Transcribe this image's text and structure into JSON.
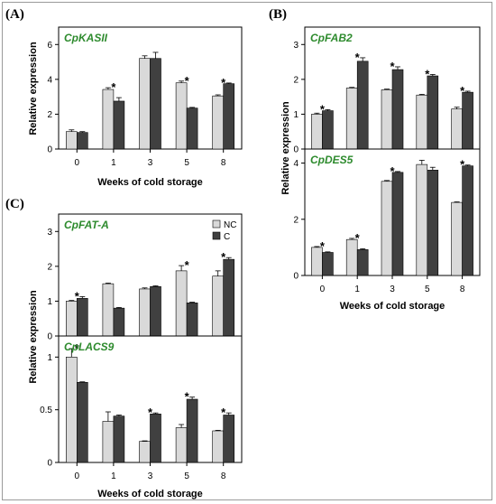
{
  "colors": {
    "NC": "#d9d9d9",
    "C": "#404040",
    "gene_label": "#2e8b2e"
  },
  "legend": {
    "nc_label": "NC",
    "c_label": "C"
  },
  "chart_data": [
    {
      "id": "kasii",
      "panel_label": "(A)",
      "type": "bar",
      "title": "CpKASII",
      "ylabel": "Relative expression",
      "xlabel": "Weeks of cold storage",
      "categories": [
        "0",
        "1",
        "3",
        "5",
        "8"
      ],
      "ylim": [
        0,
        7
      ],
      "yticks": [
        0,
        2,
        4,
        6
      ],
      "series": [
        {
          "name": "NC",
          "values": [
            1.0,
            3.42,
            5.2,
            3.8,
            3.05
          ],
          "errors": [
            0.1,
            0.1,
            0.15,
            0.1,
            0.06
          ]
        },
        {
          "name": "C",
          "values": [
            0.95,
            2.75,
            5.2,
            2.35,
            3.75
          ],
          "errors": [
            0.05,
            0.2,
            0.35,
            0.04,
            0.04
          ]
        }
      ],
      "significant": [
        false,
        true,
        false,
        true,
        true
      ]
    },
    {
      "id": "fab2",
      "panel_label": "(B)",
      "type": "bar",
      "title": "CpFAB2",
      "ylabel": "Relative expression",
      "xlabel": "",
      "categories": [
        "0",
        "1",
        "3",
        "5",
        "8"
      ],
      "ylim": [
        0,
        3.5
      ],
      "yticks": [
        0,
        1,
        2,
        3
      ],
      "series": [
        {
          "name": "NC",
          "values": [
            1.0,
            1.75,
            1.7,
            1.55,
            1.15
          ],
          "errors": [
            0.03,
            0.02,
            0.02,
            0.02,
            0.05
          ]
        },
        {
          "name": "C",
          "values": [
            1.1,
            2.52,
            2.28,
            2.1,
            1.63
          ],
          "errors": [
            0.03,
            0.1,
            0.08,
            0.04,
            0.03
          ]
        }
      ],
      "significant": [
        true,
        true,
        true,
        true,
        true
      ]
    },
    {
      "id": "des5",
      "panel_label": "",
      "type": "bar",
      "title": "CpDES5",
      "ylabel": "",
      "xlabel": "Weeks of cold storage",
      "categories": [
        "0",
        "1",
        "3",
        "5",
        "8"
      ],
      "ylim": [
        0,
        4.5
      ],
      "yticks": [
        0,
        2,
        4
      ],
      "series": [
        {
          "name": "NC",
          "values": [
            1.0,
            1.28,
            3.35,
            3.95,
            2.6
          ],
          "errors": [
            0.03,
            0.04,
            0.03,
            0.15,
            0.02
          ]
        },
        {
          "name": "C",
          "values": [
            0.82,
            0.92,
            3.67,
            3.75,
            3.9
          ],
          "errors": [
            0.02,
            0.03,
            0.03,
            0.1,
            0.03
          ]
        }
      ],
      "significant": [
        true,
        true,
        true,
        false,
        true
      ]
    },
    {
      "id": "fata",
      "panel_label": "(C)",
      "type": "bar",
      "title": "CpFAT-A",
      "ylabel": "Relative expression",
      "xlabel": "",
      "categories": [
        "0",
        "1",
        "3",
        "5",
        "8"
      ],
      "ylim": [
        0,
        3.5
      ],
      "yticks": [
        0,
        1,
        2,
        3
      ],
      "series": [
        {
          "name": "NC",
          "values": [
            1.0,
            1.5,
            1.35,
            1.87,
            1.72
          ],
          "errors": [
            0.02,
            0.02,
            0.03,
            0.15,
            0.15
          ]
        },
        {
          "name": "C",
          "values": [
            1.08,
            0.8,
            1.42,
            0.95,
            2.2
          ],
          "errors": [
            0.05,
            0.02,
            0.02,
            0.02,
            0.05
          ]
        }
      ],
      "significant": [
        true,
        false,
        false,
        true,
        true
      ]
    },
    {
      "id": "lacs9",
      "panel_label": "",
      "type": "bar",
      "title": "CpLACS9",
      "ylabel": "",
      "xlabel": "Weeks of cold storage",
      "categories": [
        "0",
        "1",
        "3",
        "5",
        "8"
      ],
      "ylim": [
        0,
        1.2
      ],
      "yticks": [
        0.0,
        0.5,
        1.0
      ],
      "series": [
        {
          "name": "NC",
          "values": [
            1.0,
            0.39,
            0.2,
            0.33,
            0.3
          ],
          "errors": [
            0.08,
            0.09,
            0.005,
            0.03,
            0.005
          ]
        },
        {
          "name": "C",
          "values": [
            0.76,
            0.44,
            0.46,
            0.6,
            0.45
          ],
          "errors": [
            0.005,
            0.01,
            0.01,
            0.02,
            0.02
          ]
        }
      ],
      "significant": [
        true,
        false,
        true,
        true,
        true
      ]
    }
  ]
}
